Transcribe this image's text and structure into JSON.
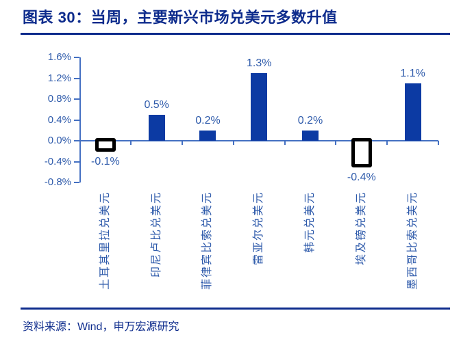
{
  "header": {
    "title": "图表 30：当周，主要新兴市场兑美元多数升值"
  },
  "footer": {
    "source": "资料来源：Wind，申万宏源研究"
  },
  "colors": {
    "navy": "#0D2B8C",
    "bar_fill": "#0C3AA3",
    "axis_line": "#4470C2",
    "tick_label": "#2F5BAB",
    "highlight_box_border": "#000000"
  },
  "chart_data": {
    "type": "bar",
    "title": "当周，主要新兴市场兑美元多数升值",
    "categories": [
      "土耳其里拉兑美元",
      "印尼卢比兑美元",
      "菲律宾比索兑美元",
      "雷亚尔兑美元",
      "韩元兑美元",
      "埃及镑兑美元",
      "墨西哥比索兑美元"
    ],
    "values": [
      -0.1,
      0.5,
      0.2,
      1.3,
      0.2,
      -0.4,
      1.1
    ],
    "value_labels": [
      "-0.1%",
      "0.5%",
      "0.2%",
      "1.3%",
      "0.2%",
      "-0.4%",
      "1.1%"
    ],
    "highlighted_black_box": [
      true,
      false,
      false,
      false,
      false,
      true,
      false
    ],
    "unit": "%",
    "xlabel": "",
    "ylabel": "",
    "ylim": [
      -0.8,
      1.6
    ],
    "ytick_step": 0.4,
    "ytick_labels": [
      "1.6%",
      "1.2%",
      "0.8%",
      "0.4%",
      "0.0%",
      "-0.4%",
      "-0.8%"
    ],
    "grid": false,
    "legend": false
  }
}
